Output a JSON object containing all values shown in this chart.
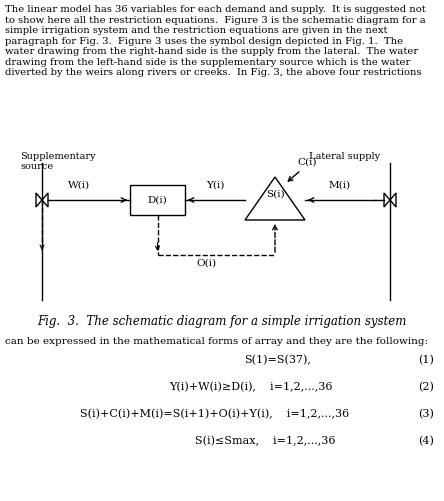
{
  "title": "Fig.  3.  The schematic diagram for a simple irrigation system",
  "title_fontsize": 9,
  "background_color": "#ffffff",
  "text_color": "#000000",
  "header_text": "The linear model has 36 variables for each demand and supply.  It is suggested not\nto show here all the restriction equations.  Figure 3 is the schematic diagram for a\nsimple irrigation system and the restriction equations are given in the next\nparagraph for Fig. 3.  Figure 3 uses the symbol design depicted in Fig. 1.  The\nwater drawing from the right-hand side is the supply from the lateral.  The water\ndrawing from the left-hand side is the supplementary source which is the water\ndiverted by the weirs along rivers or creeks.  In Fig. 3, the above four restrictions",
  "can_text": "can be expressed in the mathematical forms of array and they are the following:",
  "equations": [
    {
      "eq": "S(1)=S(37),",
      "num": "(1)",
      "indent": 0.55
    },
    {
      "eq": "Y(i)+W(i)≥D(i),    i=1,2,...,36",
      "num": "(2)",
      "indent": 0.38
    },
    {
      "eq": "S(i)+C(i)+M(i)=S(i+1)+O(i)+Y(i),    i=1,2,...,36",
      "num": "(3)",
      "indent": 0.18
    },
    {
      "eq": "S(i)≤Smax,    i=1,2,...,36",
      "num": "(4)",
      "indent": 0.44
    }
  ],
  "supp_source_label": "Supplementary\nsource",
  "lateral_supply_label": "Lateral supply",
  "node_labels": [
    "W(i)",
    "D(i)",
    "Y(i)",
    "S(i)",
    "M(i)",
    "C(i)",
    "O(i)"
  ]
}
